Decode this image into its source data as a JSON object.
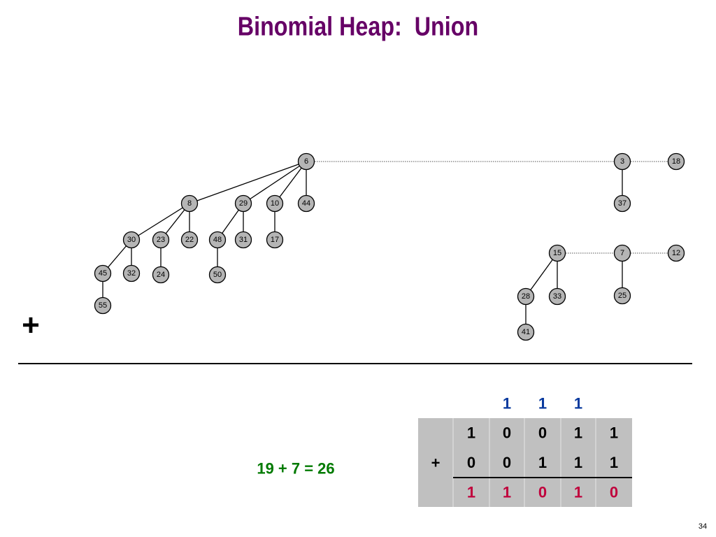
{
  "title": "Binomial Heap:  Union",
  "nodes": [
    "6",
    "3",
    "18",
    "8",
    "29",
    "10",
    "44",
    "37",
    "30",
    "23",
    "22",
    "48",
    "31",
    "17",
    "15",
    "7",
    "12",
    "45",
    "32",
    "24",
    "50",
    "28",
    "33",
    "25",
    "55",
    "41"
  ],
  "plus_sign": "+",
  "equation": "19 + 7 = 26",
  "carries": [
    "1",
    "1",
    "1"
  ],
  "table": {
    "operator": "+",
    "rows": [
      [
        "1",
        "0",
        "0",
        "1",
        "1"
      ],
      [
        "0",
        "0",
        "1",
        "1",
        "1"
      ],
      [
        "1",
        "1",
        "0",
        "1",
        "0"
      ]
    ]
  },
  "page_number": "34"
}
